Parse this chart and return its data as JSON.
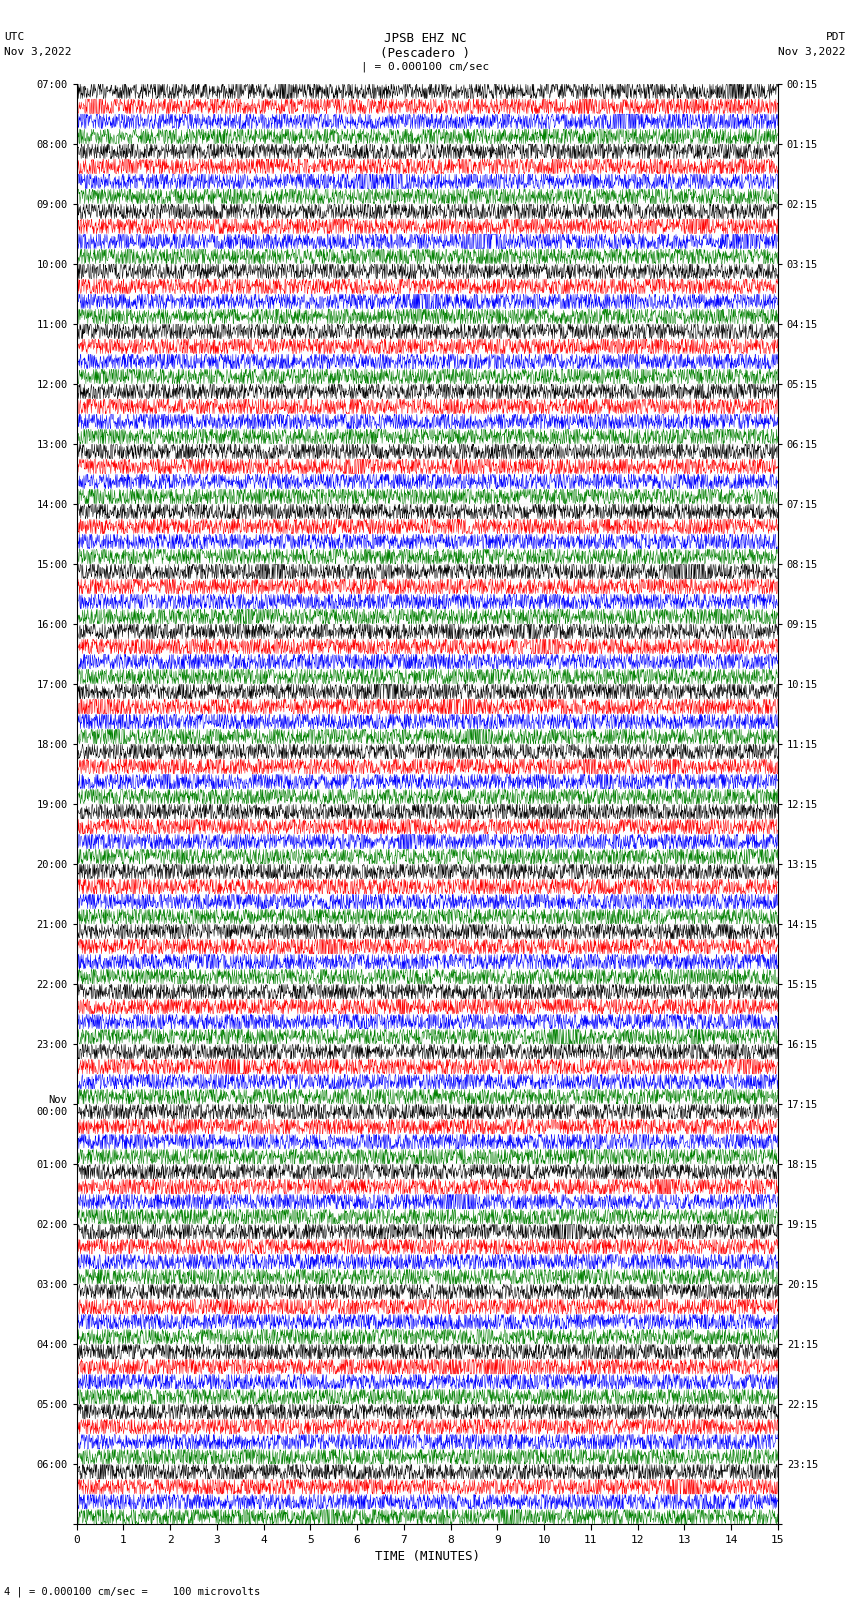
{
  "title_line1": "JPSB EHZ NC",
  "title_line2": "(Pescadero )",
  "title_line3": "| = 0.000100 cm/sec",
  "left_header_1": "UTC",
  "left_header_2": "Nov 3,2022",
  "right_header_1": "PDT",
  "right_header_2": "Nov 3,2022",
  "xlabel": "TIME (MINUTES)",
  "footer": "4 | = 0.000100 cm/sec =    100 microvolts",
  "utc_labels": [
    "07:00",
    "08:00",
    "09:00",
    "10:00",
    "11:00",
    "12:00",
    "13:00",
    "14:00",
    "15:00",
    "16:00",
    "17:00",
    "18:00",
    "19:00",
    "20:00",
    "21:00",
    "22:00",
    "23:00",
    "Nov\n00:00",
    "01:00",
    "02:00",
    "03:00",
    "04:00",
    "05:00",
    "06:00"
  ],
  "pdt_labels": [
    "00:15",
    "01:15",
    "02:15",
    "03:15",
    "04:15",
    "05:15",
    "06:15",
    "07:15",
    "08:15",
    "09:15",
    "10:15",
    "11:15",
    "12:15",
    "13:15",
    "14:15",
    "15:15",
    "16:15",
    "17:15",
    "18:15",
    "19:15",
    "20:15",
    "21:15",
    "22:15",
    "23:15"
  ],
  "trace_colors": [
    "black",
    "red",
    "blue",
    "green"
  ],
  "n_groups": 24,
  "traces_per_group": 4,
  "n_points": 1800,
  "x_min": 0,
  "x_max": 15,
  "background_color": "white",
  "seed": 42
}
